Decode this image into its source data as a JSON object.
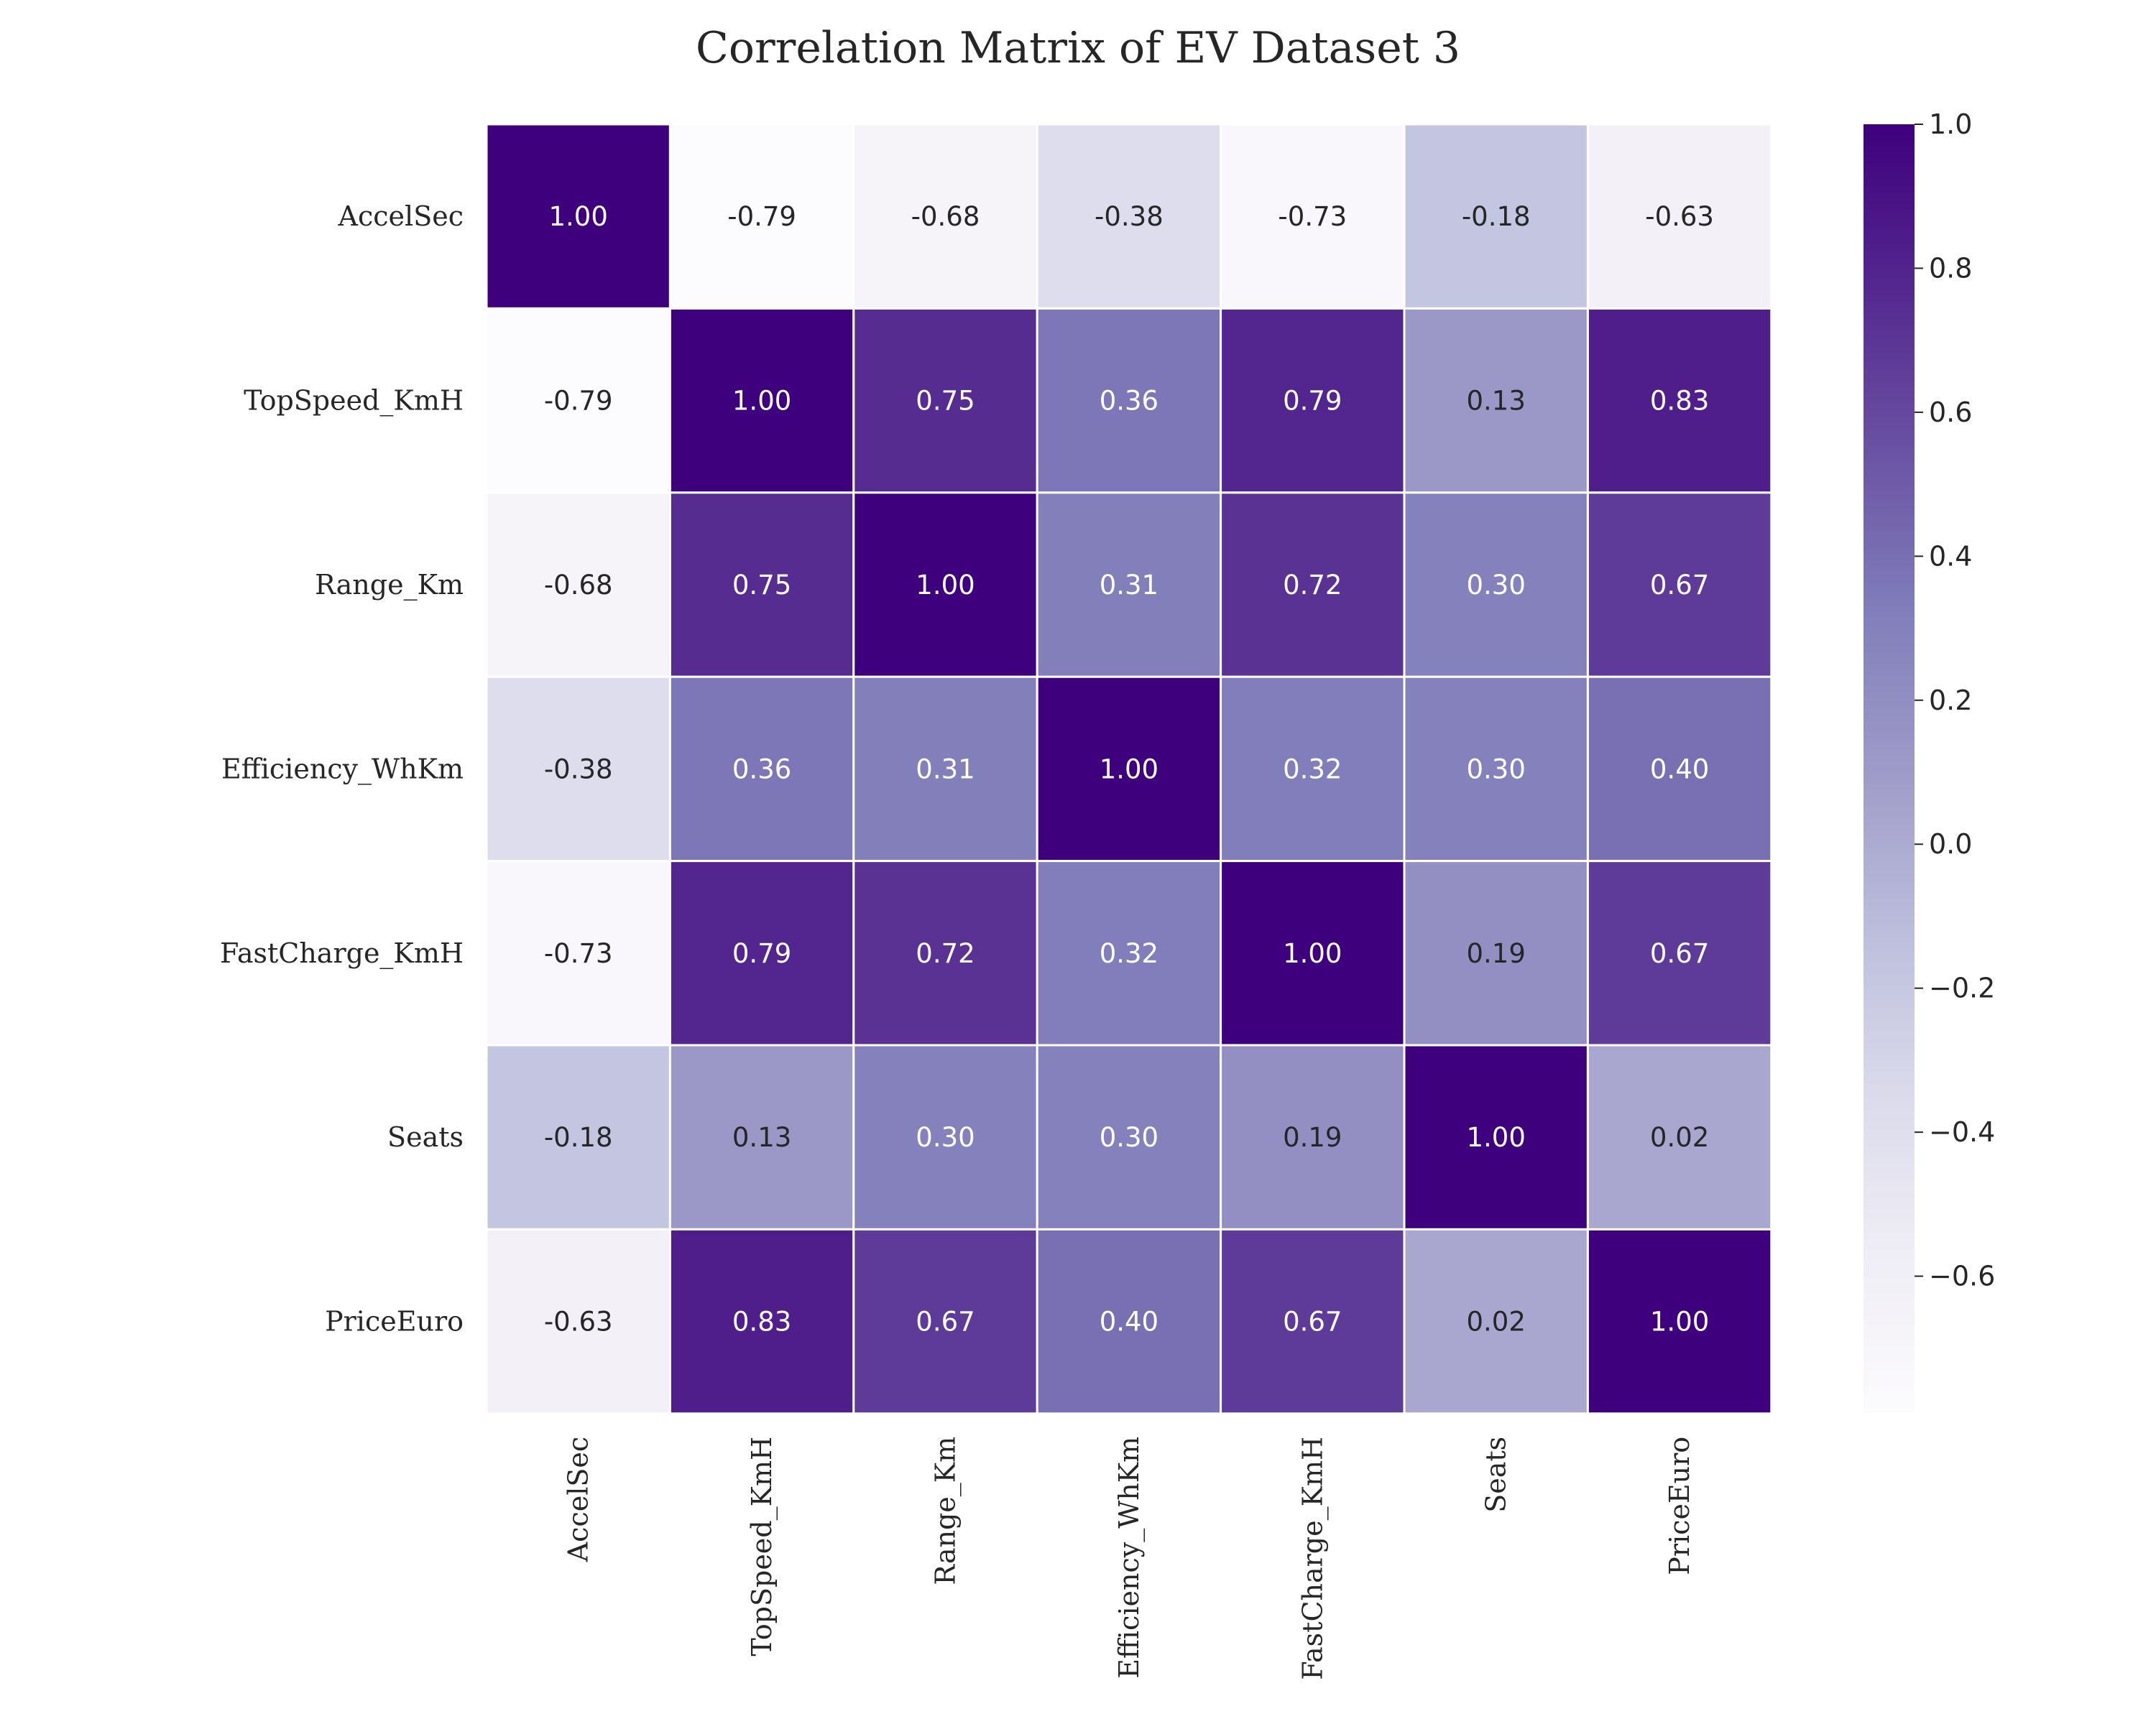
{
  "chart_data": {
    "type": "heatmap",
    "title": "Correlation Matrix of EV Dataset 3",
    "xlabel": "",
    "ylabel": "",
    "rows": [
      "AccelSec",
      "TopSpeed_KmH",
      "Range_Km",
      "Efficiency_WhKm",
      "FastCharge_KmH",
      "Seats",
      "PriceEuro"
    ],
    "columns": [
      "AccelSec",
      "TopSpeed_KmH",
      "Range_Km",
      "Efficiency_WhKm",
      "FastCharge_KmH",
      "Seats",
      "PriceEuro"
    ],
    "values": [
      [
        1.0,
        -0.79,
        -0.68,
        -0.38,
        -0.73,
        -0.18,
        -0.63
      ],
      [
        -0.79,
        1.0,
        0.75,
        0.36,
        0.79,
        0.13,
        0.83
      ],
      [
        -0.68,
        0.75,
        1.0,
        0.31,
        0.72,
        0.3,
        0.67
      ],
      [
        -0.38,
        0.36,
        0.31,
        1.0,
        0.32,
        0.3,
        0.4
      ],
      [
        -0.73,
        0.79,
        0.72,
        0.32,
        1.0,
        0.19,
        0.67
      ],
      [
        -0.18,
        0.13,
        0.3,
        0.3,
        0.19,
        1.0,
        0.02
      ],
      [
        -0.63,
        0.83,
        0.67,
        0.4,
        0.67,
        0.02,
        1.0
      ]
    ],
    "cell_labels": [
      [
        "1.00",
        "-0.79",
        "-0.68",
        "-0.38",
        "-0.73",
        "-0.18",
        "-0.63"
      ],
      [
        "-0.79",
        "1.00",
        "0.75",
        "0.36",
        "0.79",
        "0.13",
        "0.83"
      ],
      [
        "-0.68",
        "0.75",
        "1.00",
        "0.31",
        "0.72",
        "0.30",
        "0.67"
      ],
      [
        "-0.38",
        "0.36",
        "0.31",
        "1.00",
        "0.32",
        "0.30",
        "0.40"
      ],
      [
        "-0.73",
        "0.79",
        "0.72",
        "0.32",
        "1.00",
        "0.19",
        "0.67"
      ],
      [
        "-0.18",
        "0.13",
        "0.30",
        "0.30",
        "0.19",
        "1.00",
        "0.02"
      ],
      [
        "-0.63",
        "0.83",
        "0.67",
        "0.40",
        "0.67",
        "0.02",
        "1.00"
      ]
    ],
    "colormap": "Purples",
    "colorbar": {
      "range": [
        -0.79,
        1.0
      ],
      "ticks": [
        1.0,
        0.8,
        0.6,
        0.4,
        0.2,
        0.0,
        -0.2,
        -0.4,
        -0.6
      ],
      "tick_labels": [
        "1.0",
        "0.8",
        "0.6",
        "0.4",
        "0.2",
        "0.0",
        "−0.2",
        "−0.4",
        "−0.6"
      ]
    },
    "grid": false,
    "cell_border_color": "#ffffff"
  }
}
